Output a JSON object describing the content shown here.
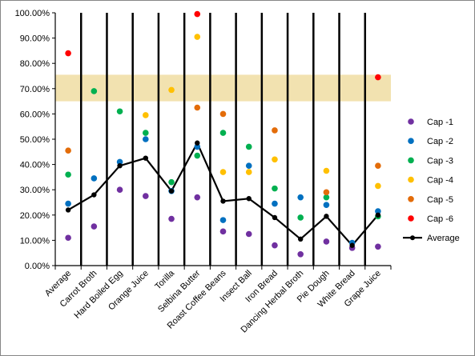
{
  "chart_data": {
    "type": "scatter",
    "title": "",
    "xlabel": "",
    "ylabel": "",
    "ylim": [
      0,
      1
    ],
    "y_ticks": [
      "0.00%",
      "10.00%",
      "20.00%",
      "30.00%",
      "40.00%",
      "50.00%",
      "60.00%",
      "70.00%",
      "80.00%",
      "90.00%",
      "100.00%"
    ],
    "grid": "vertical category separators",
    "categories": [
      "Average",
      "Carrot Broth",
      "Hard Boiled Egg",
      "Orange Juice",
      "Torilla",
      "Selbina Butter",
      "Roast Coffee Beans",
      "Insect Ball",
      "Iron Bread",
      "Dancing Herbal Broth",
      "Pie Dough",
      "White Bread",
      "Grape Juice"
    ],
    "band": {
      "from": 0.65,
      "to": 0.755,
      "color": "#f2e2b0"
    },
    "legend_position": "right",
    "series": [
      {
        "name": "Cap -1",
        "color": "#7030a0",
        "line": false,
        "values": [
          0.11,
          0.155,
          0.3,
          0.275,
          0.185,
          0.27,
          0.135,
          0.125,
          0.08,
          0.045,
          0.095,
          0.07,
          0.075
        ]
      },
      {
        "name": "Cap -2",
        "color": "#0070c0",
        "line": false,
        "values": [
          0.245,
          0.345,
          0.41,
          0.5,
          0.295,
          0.47,
          0.18,
          0.395,
          0.245,
          0.27,
          0.24,
          0.09,
          0.215
        ]
      },
      {
        "name": "Cap -3",
        "color": "#00b050",
        "line": false,
        "values": [
          0.36,
          0.69,
          0.61,
          0.525,
          0.33,
          0.435,
          0.525,
          0.47,
          0.305,
          0.19,
          0.27,
          null,
          0.195
        ]
      },
      {
        "name": "Cap -4",
        "color": "#ffc000",
        "line": false,
        "values": [
          null,
          null,
          null,
          0.595,
          0.695,
          0.905,
          0.37,
          0.37,
          0.42,
          null,
          0.375,
          null,
          0.315
        ]
      },
      {
        "name": "Cap -5",
        "color": "#e36c09",
        "line": false,
        "values": [
          0.455,
          null,
          null,
          null,
          null,
          0.625,
          0.6,
          null,
          0.535,
          null,
          0.29,
          null,
          0.395
        ]
      },
      {
        "name": "Cap -6",
        "color": "#ff0000",
        "line": false,
        "values": [
          0.84,
          null,
          null,
          null,
          null,
          0.995,
          null,
          null,
          null,
          null,
          null,
          null,
          0.745
        ]
      },
      {
        "name": "Average",
        "color": "#000000",
        "line": true,
        "values": [
          0.22,
          0.28,
          0.395,
          0.425,
          0.295,
          0.485,
          0.255,
          0.265,
          0.19,
          0.105,
          0.195,
          0.08,
          0.2
        ]
      }
    ]
  }
}
